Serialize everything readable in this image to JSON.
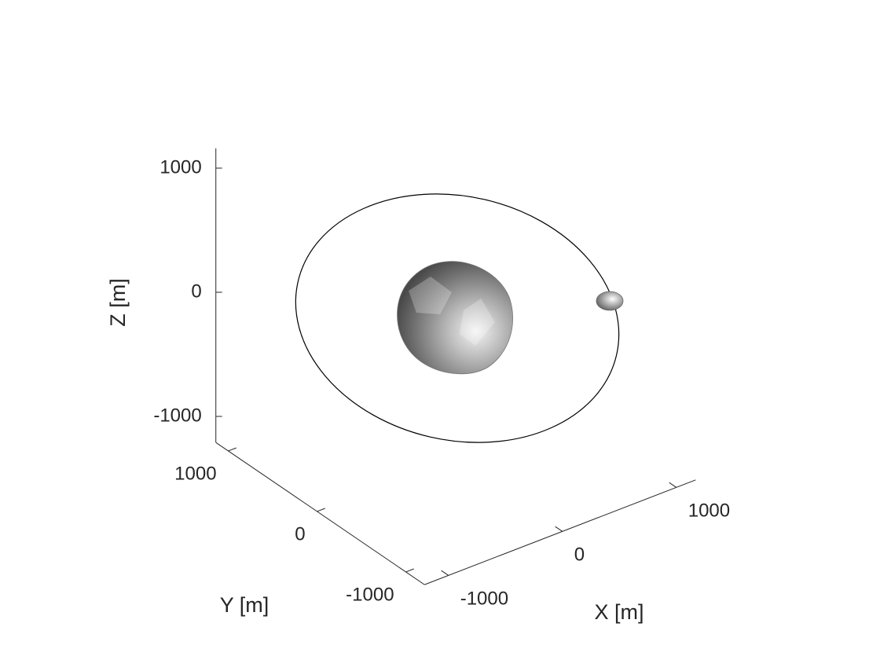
{
  "chart_data": {
    "type": "surface3d",
    "xlabel": "X [m]",
    "ylabel": "Y [m]",
    "zlabel": "Z [m]",
    "xlim": [
      -1210,
      1170
    ],
    "ylim": [
      -1210,
      1140
    ],
    "zlim": [
      -1210,
      1160
    ],
    "xticks": [
      -1000,
      0,
      1000
    ],
    "yticks": [
      -1000,
      0,
      1000
    ],
    "zticks": [
      -1000,
      0,
      1000
    ]
  }
}
